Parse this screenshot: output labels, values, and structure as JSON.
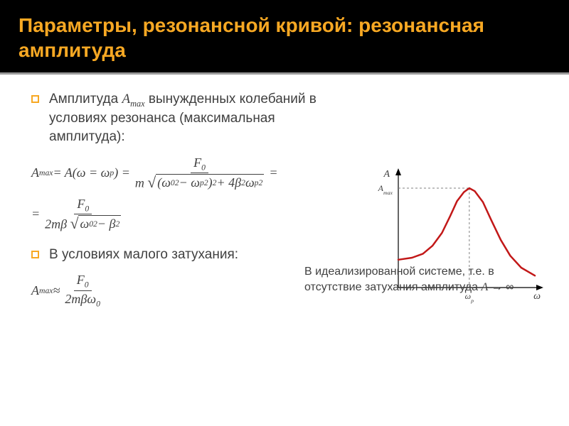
{
  "header": {
    "title": "Параметры, резонансной кривой: резонансная амплитуда",
    "title_color": "#f7a823",
    "background": "#000000",
    "underline_color": "#9a9a9a"
  },
  "bullets": [
    {
      "text_prefix": "Амплитуда ",
      "symbol": "A",
      "symbol_sub": "max",
      "text_suffix": " вынужденных колебаний в условиях резонанса (максимальная амплитуда):"
    },
    {
      "text_prefix": "В условиях малого затухания:",
      "symbol": "",
      "symbol_sub": "",
      "text_suffix": ""
    }
  ],
  "formulas": {
    "f1_lhs": "A",
    "f1_lhs_sub": "max",
    "f1_mid": " = A(ω = ω",
    "f1_mid_sub": "p",
    "f1_mid2": ") = ",
    "f1_num": "F",
    "f1_num_sub": "0",
    "f1_den_m": "m",
    "f1_den_a": "(ω",
    "f1_den_a_sub": "0",
    "f1_den_a_sup": "2",
    "f1_den_b": " − ω",
    "f1_den_b_sub": "p",
    "f1_den_b_sup": "2",
    "f1_den_c": ")",
    "f1_den_c_sup": "2",
    "f1_den_d": " + 4β",
    "f1_den_d_sup": "2",
    "f1_den_e": "ω",
    "f1_den_e_sub": "p",
    "f1_den_e_sup": "2",
    "f1_trail": " =",
    "f2_lead": "= ",
    "f2_num": "F",
    "f2_num_sub": "0",
    "f2_den_a": "2mβ",
    "f2_den_b": "ω",
    "f2_den_b_sub": "0",
    "f2_den_b_sup": "2",
    "f2_den_c": " − β",
    "f2_den_c_sup": "2",
    "f3_lhs": "A",
    "f3_lhs_sub": "max",
    "f3_approx": " ≈ ",
    "f3_num": "F",
    "f3_num_sub": "0",
    "f3_den_a": "2mβω",
    "f3_den_a_sub": "0"
  },
  "footnote": {
    "text_a": "В идеализированной системе, т.е. в отсутствие затухания амплитуда ",
    "symbol": "A",
    "text_b": " → ∞"
  },
  "chart": {
    "type": "line",
    "y_label": "A",
    "y_max_label": "A",
    "y_max_label_sub": "max",
    "x_label": "ω",
    "x_peak_label": "ω",
    "x_peak_label_sub": "p",
    "axis_color": "#000000",
    "curve_color": "#c21818",
    "dash_color": "#808080",
    "curve_width": 2.5,
    "label_fontsize": 12,
    "label_color": "#404040",
    "points": [
      [
        0.0,
        0.28
      ],
      [
        0.1,
        0.3
      ],
      [
        0.18,
        0.34
      ],
      [
        0.25,
        0.42
      ],
      [
        0.32,
        0.55
      ],
      [
        0.38,
        0.72
      ],
      [
        0.43,
        0.87
      ],
      [
        0.48,
        0.96
      ],
      [
        0.52,
        1.0
      ],
      [
        0.56,
        0.97
      ],
      [
        0.62,
        0.86
      ],
      [
        0.68,
        0.68
      ],
      [
        0.75,
        0.48
      ],
      [
        0.82,
        0.32
      ],
      [
        0.9,
        0.2
      ],
      [
        1.0,
        0.12
      ]
    ],
    "peak_x": 0.52,
    "xlim": [
      0,
      1
    ],
    "ylim": [
      0,
      1.1
    ]
  }
}
